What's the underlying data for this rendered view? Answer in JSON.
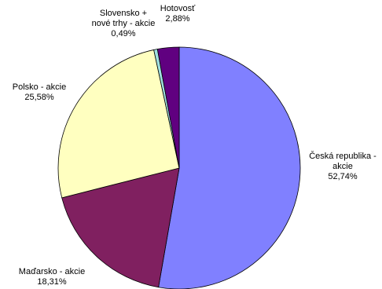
{
  "chart_data": {
    "type": "pie",
    "title": "",
    "legend": "none",
    "slices": [
      {
        "label_lines": [
          "Česká republika -",
          "akcie"
        ],
        "value": 52.74,
        "value_text": "52,74%",
        "color": "#8080FF"
      },
      {
        "label_lines": [
          "Maďarsko - akcie"
        ],
        "value": 18.31,
        "value_text": "18,31%",
        "color": "#802060"
      },
      {
        "label_lines": [
          "Polsko - akcie"
        ],
        "value": 25.58,
        "value_text": "25,58%",
        "color": "#FFFFC0"
      },
      {
        "label_lines": [
          "Slovensko +",
          "nové trhy - akcie"
        ],
        "value": 0.49,
        "value_text": "0,49%",
        "color": "#A0E0E0"
      },
      {
        "label_lines": [
          "Hotovosť"
        ],
        "value": 2.88,
        "value_text": "2,88%",
        "color": "#600080"
      }
    ]
  }
}
